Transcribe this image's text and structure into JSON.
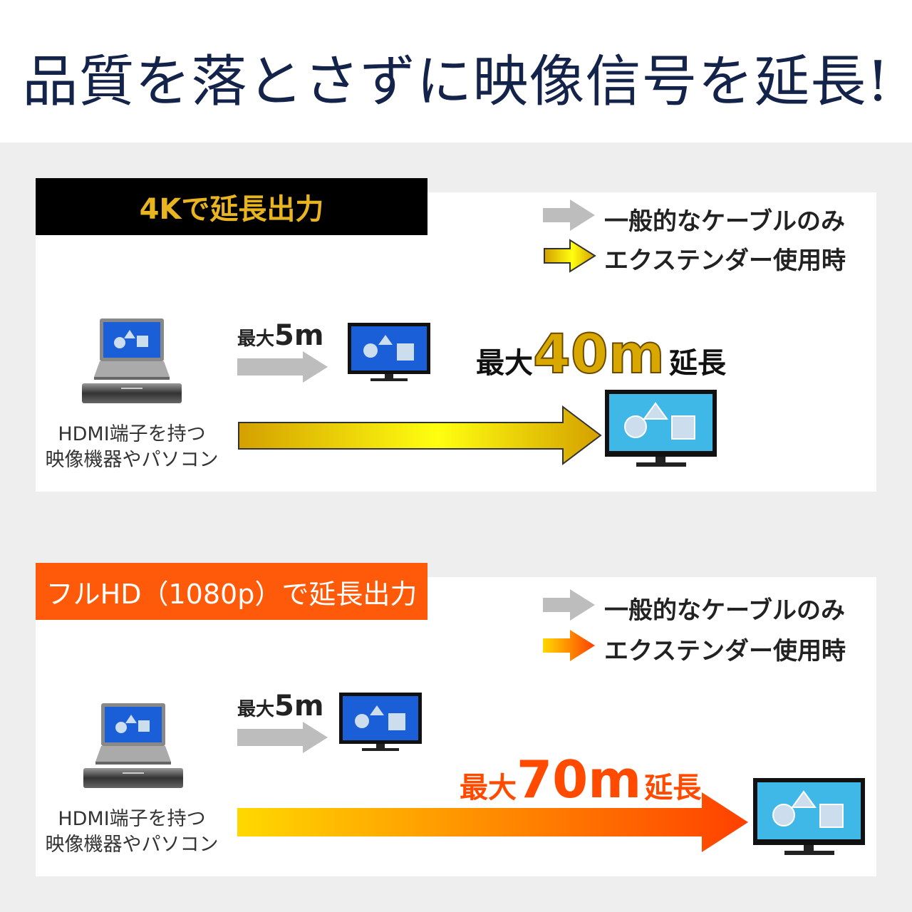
{
  "title": "品質を落とさずに映像信号を延長!",
  "legend": {
    "normal": "一般的なケーブルのみ",
    "extender": "エクステンダー使用時"
  },
  "source_caption": [
    "HDMI端子を持つ",
    "映像機器やパソコン"
  ],
  "sections": [
    {
      "tag": "4Kで延長出力",
      "tag_bg": "#000000",
      "tag_color": "#e8b420",
      "short_prefix": "最大",
      "short_value": "5m",
      "long_prefix": "最大",
      "long_value": "40m",
      "long_suffix": "延長",
      "arrow_colors": [
        "#d4a000",
        "#ffff00",
        "#d4a000"
      ]
    },
    {
      "tag": "フルHD（1080p）で延長出力",
      "tag_bg": "#ff5a0a",
      "tag_color": "#ffffff",
      "short_prefix": "最大",
      "short_value": "5m",
      "long_prefix": "最大",
      "long_value": "70m",
      "long_suffix": "延長",
      "arrow_colors": [
        "#ffd800",
        "#ff4a00"
      ]
    }
  ],
  "colors": {
    "title": "#14234a",
    "gray_arrow": "#bdbdbd",
    "screen_blue": "#1a5fd8",
    "screen_cyan": "#3fb8e8"
  }
}
